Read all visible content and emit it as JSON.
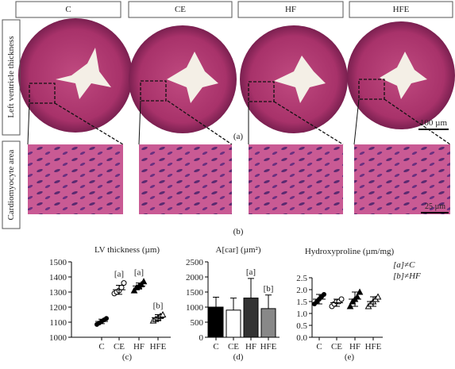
{
  "header": {
    "columns": [
      "C",
      "CE",
      "HF",
      "HFE"
    ]
  },
  "rows": [
    "Left ventricle thickness",
    "Cardiomyocyte area"
  ],
  "panel_labels": [
    "(a)",
    "(b)"
  ],
  "scale_bars": [
    "100 µm",
    "25 µm"
  ],
  "chart_data": [
    {
      "type": "scatter",
      "title": "LV thickness (µm)",
      "label": "(c)",
      "categories": [
        "C",
        "CE",
        "HF",
        "HFE"
      ],
      "points": [
        [
          1085,
          1095,
          1105,
          1115,
          1125
        ],
        [
          1290,
          1300,
          1310,
          1330,
          1360
        ],
        [
          1310,
          1330,
          1340,
          1350,
          1370
        ],
        [
          1110,
          1120,
          1130,
          1140,
          1150
        ]
      ],
      "means": [
        1105,
        1315,
        1340,
        1130
      ],
      "errors": [
        15,
        30,
        20,
        20
      ],
      "ylim": [
        1000,
        1500
      ],
      "yticks": [
        1000,
        1100,
        1200,
        1300,
        1400,
        1500
      ],
      "annotations": [
        {
          "text": "[a]",
          "category": "CE"
        },
        {
          "text": "[a]",
          "category": "HF"
        },
        {
          "text": "[b]",
          "category": "HFE"
        }
      ]
    },
    {
      "type": "bar",
      "title": "A[car] (µm²)",
      "label": "(d)",
      "categories": [
        "C",
        "CE",
        "HF",
        "HFE"
      ],
      "values": [
        1000,
        900,
        1300,
        950
      ],
      "errors": [
        330,
        400,
        650,
        450
      ],
      "colors": [
        "#000000",
        "#ffffff",
        "#333333",
        "#888888"
      ],
      "ylim": [
        0,
        2500
      ],
      "yticks": [
        0,
        500,
        1000,
        1500,
        2000,
        2500
      ],
      "annotations": [
        {
          "text": "[a]",
          "category": "HF"
        },
        {
          "text": "[b]",
          "category": "HFE"
        }
      ]
    },
    {
      "type": "scatter",
      "title": "Hydroxyproline (µm/mg)",
      "label": "(e)",
      "categories": [
        "C",
        "CE",
        "HF",
        "HFE"
      ],
      "points": [
        [
          1.4,
          1.5,
          1.6,
          1.7,
          1.8
        ],
        [
          1.3,
          1.4,
          1.5,
          1.5,
          1.6
        ],
        [
          1.3,
          1.5,
          1.6,
          1.7,
          1.9
        ],
        [
          1.3,
          1.4,
          1.5,
          1.6,
          1.7
        ]
      ],
      "means": [
        1.6,
        1.45,
        1.6,
        1.5
      ],
      "errors": [
        0.2,
        0.15,
        0.3,
        0.2
      ],
      "ylim": [
        0,
        2.5
      ],
      "yticks": [
        {
          "value": 0,
          "label": "0.0"
        },
        0.5,
        {
          "value": 1,
          "label": "1.0"
        },
        1.5,
        {
          "value": 2,
          "label": "2.0"
        },
        2.5
      ],
      "annotations": [],
      "notes": [
        "[a]≠C",
        "[b]≠HF"
      ]
    }
  ]
}
